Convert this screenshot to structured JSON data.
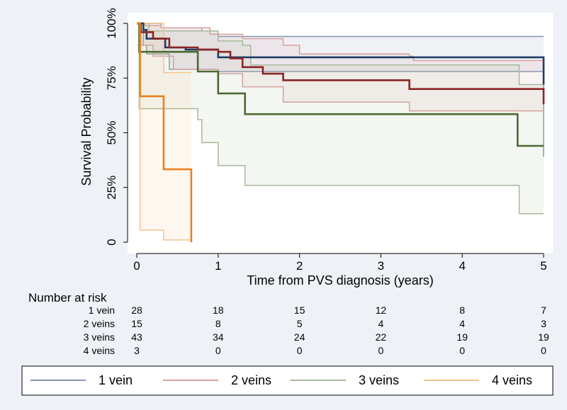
{
  "chart_data": {
    "type": "line",
    "subtype": "kaplan-meier",
    "xlabel": "Time from PVS diagnosis (years)",
    "ylabel": "Survival Probability",
    "xlim": [
      0,
      5
    ],
    "ylim": [
      0,
      1
    ],
    "x_ticks": [
      0,
      1,
      2,
      3,
      4,
      5
    ],
    "y_ticks": [
      0,
      0.25,
      0.5,
      0.75,
      1.0
    ],
    "y_tick_labels": [
      "0",
      "25%",
      "50%",
      "75%",
      "100%"
    ],
    "grid": false,
    "legend_position": "bottom",
    "series": [
      {
        "name": "1 vein",
        "color": "#1f3d66",
        "ci_color": "#8496b0",
        "steps": [
          [
            0,
            1.0
          ],
          [
            0.08,
            0.97
          ],
          [
            0.12,
            0.93
          ],
          [
            0.35,
            0.89
          ],
          [
            0.6,
            0.88
          ],
          [
            1.0,
            0.845
          ],
          [
            5.0,
            0.845
          ],
          [
            5.0,
            0.72
          ]
        ],
        "ci_upper": [
          [
            0,
            1.0
          ],
          [
            0.1,
            1.0
          ],
          [
            0.3,
            0.98
          ],
          [
            0.8,
            0.965
          ],
          [
            1.0,
            0.94
          ],
          [
            5.0,
            0.94
          ]
        ],
        "ci_lower": [
          [
            0,
            1.0
          ],
          [
            0.08,
            0.9
          ],
          [
            0.12,
            0.86
          ],
          [
            0.4,
            0.79
          ],
          [
            1.0,
            0.78
          ],
          [
            4.97,
            0.78
          ],
          [
            5.0,
            0.39
          ]
        ]
      },
      {
        "name": "2 veins",
        "color": "#8b2424",
        "ci_color": "#d7a0a0",
        "steps": [
          [
            0,
            1.0
          ],
          [
            0.05,
            0.96
          ],
          [
            0.2,
            0.93
          ],
          [
            0.4,
            0.89
          ],
          [
            0.75,
            0.88
          ],
          [
            1.0,
            0.87
          ],
          [
            1.15,
            0.84
          ],
          [
            1.3,
            0.8
          ],
          [
            1.55,
            0.77
          ],
          [
            1.8,
            0.74
          ],
          [
            3.35,
            0.7
          ],
          [
            5.0,
            0.7
          ],
          [
            5.0,
            0.63
          ]
        ],
        "ci_upper": [
          [
            0,
            1.0
          ],
          [
            0.1,
            0.99
          ],
          [
            0.3,
            0.98
          ],
          [
            0.9,
            0.95
          ],
          [
            1.3,
            0.93
          ],
          [
            1.8,
            0.9
          ],
          [
            2.0,
            0.86
          ],
          [
            3.35,
            0.85
          ],
          [
            3.4,
            0.83
          ],
          [
            5.0,
            0.83
          ]
        ],
        "ci_lower": [
          [
            0,
            1.0
          ],
          [
            0.05,
            0.9
          ],
          [
            0.2,
            0.85
          ],
          [
            0.45,
            0.79
          ],
          [
            1.0,
            0.77
          ],
          [
            1.3,
            0.71
          ],
          [
            1.8,
            0.64
          ],
          [
            3.35,
            0.6
          ],
          [
            5.0,
            0.6
          ]
        ]
      },
      {
        "name": "3 veins",
        "color": "#4a6b30",
        "ci_color": "#a8b89a",
        "steps": [
          [
            0,
            1.0
          ],
          [
            0.03,
            0.87
          ],
          [
            0.75,
            0.87
          ],
          [
            0.75,
            0.78
          ],
          [
            1.0,
            0.78
          ],
          [
            1.0,
            0.68
          ],
          [
            1.33,
            0.68
          ],
          [
            1.33,
            0.585
          ],
          [
            4.68,
            0.585
          ],
          [
            4.68,
            0.44
          ],
          [
            5.0,
            0.44
          ]
        ],
        "ci_upper": [
          [
            0,
            1.0
          ],
          [
            0.15,
            0.965
          ],
          [
            0.8,
            0.965
          ],
          [
            1.0,
            0.92
          ],
          [
            1.3,
            0.9
          ],
          [
            1.4,
            0.81
          ],
          [
            4.68,
            0.81
          ],
          [
            4.7,
            0.72
          ],
          [
            5.0,
            0.72
          ]
        ],
        "ci_lower": [
          [
            0,
            1.0
          ],
          [
            0.03,
            0.61
          ],
          [
            0.75,
            0.56
          ],
          [
            0.8,
            0.455
          ],
          [
            1.0,
            0.35
          ],
          [
            1.33,
            0.26
          ],
          [
            4.68,
            0.26
          ],
          [
            4.7,
            0.13
          ],
          [
            5.0,
            0.13
          ]
        ]
      },
      {
        "name": "4 veins",
        "color": "#e8821c",
        "ci_color": "#f4c48a",
        "steps": [
          [
            0,
            1.0
          ],
          [
            0.04,
            0.667
          ],
          [
            0.33,
            0.667
          ],
          [
            0.33,
            0.333
          ],
          [
            0.67,
            0.333
          ],
          [
            0.67,
            0.0
          ]
        ],
        "ci_upper": [
          [
            0,
            1.0
          ],
          [
            0.33,
            0.775
          ],
          [
            0.67,
            0.775
          ]
        ],
        "ci_lower": [
          [
            0,
            0.9
          ],
          [
            0.04,
            0.055
          ],
          [
            0.33,
            0.055
          ],
          [
            0.33,
            0.01
          ],
          [
            0.67,
            0.01
          ]
        ]
      }
    ],
    "risk_table": {
      "title": "Number at risk",
      "times": [
        0,
        1,
        2,
        3,
        4,
        5
      ],
      "rows": [
        {
          "label": "1 vein",
          "values": [
            28,
            18,
            15,
            12,
            8,
            7
          ]
        },
        {
          "label": "2 veins",
          "values": [
            15,
            8,
            5,
            4,
            4,
            3
          ]
        },
        {
          "label": "3 veins",
          "values": [
            43,
            34,
            24,
            22,
            19,
            19
          ]
        },
        {
          "label": "4 veins",
          "values": [
            3,
            0,
            0,
            0,
            0,
            0
          ]
        }
      ]
    },
    "legend": [
      {
        "name": "1 vein",
        "color": "#8496b0"
      },
      {
        "name": "2 veins",
        "color": "#d7a0a0"
      },
      {
        "name": "3 veins",
        "color": "#a8b89a"
      },
      {
        "name": "4 veins",
        "color": "#f4c48a"
      }
    ]
  }
}
